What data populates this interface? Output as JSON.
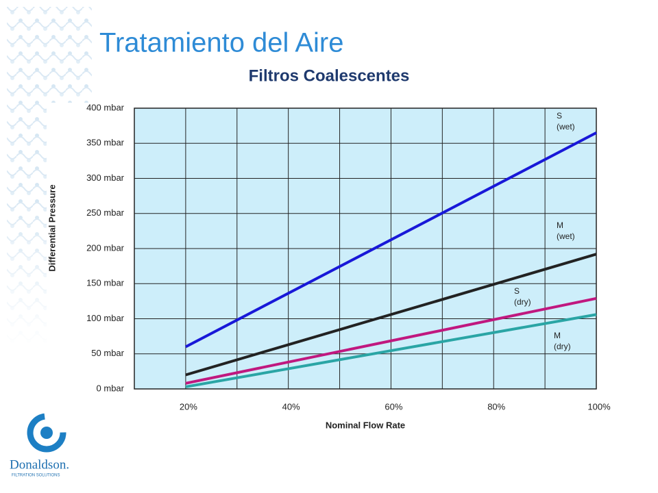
{
  "header": {
    "title": "Tratamiento  del Aire",
    "subtitle": "Filtros Coalescentes"
  },
  "logo": {
    "name": "Donaldson.",
    "tagline": "FILTRATION SOLUTIONS"
  },
  "chart_data": {
    "type": "line",
    "x_label": "Nominal Flow Rate",
    "y_label": "Differential Pressure",
    "x": [
      20,
      100
    ],
    "series": [
      {
        "label": [
          "S",
          "(wet)"
        ],
        "color": "#1818d8",
        "values": [
          60,
          365
        ]
      },
      {
        "label": [
          "M",
          "(wet)"
        ],
        "color": "#222222",
        "values": [
          20,
          192
        ]
      },
      {
        "label": [
          "S",
          "(dry)"
        ],
        "color": "#c0187f",
        "values": [
          8,
          129
        ]
      },
      {
        "label": [
          "M",
          "(dry)"
        ],
        "color": "#2aa5a5",
        "values": [
          3,
          106
        ]
      }
    ],
    "xlim": [
      10,
      100
    ],
    "xticks": [
      {
        "value": 20,
        "label": "20%"
      },
      {
        "value": 40,
        "label": "40%"
      },
      {
        "value": 60,
        "label": "60%"
      },
      {
        "value": 80,
        "label": "80%"
      },
      {
        "value": 100,
        "label": "100%"
      }
    ],
    "x_gridlines": [
      10,
      20,
      30,
      40,
      50,
      60,
      70,
      80,
      90,
      100
    ],
    "ylim": [
      0,
      400
    ],
    "yticks": [
      {
        "value": 0,
        "label": "0 mbar"
      },
      {
        "value": 50,
        "label": "50 mbar"
      },
      {
        "value": 100,
        "label": "100 mbar"
      },
      {
        "value": 150,
        "label": "150 mbar"
      },
      {
        "value": 200,
        "label": "200 mbar"
      },
      {
        "value": 250,
        "label": "250 mbar"
      },
      {
        "value": 300,
        "label": "300 mbar"
      },
      {
        "value": 350,
        "label": "350 mbar"
      },
      {
        "value": 400,
        "label": "400 mbar"
      }
    ],
    "grid": true,
    "plot_background": "#cdeefa"
  }
}
